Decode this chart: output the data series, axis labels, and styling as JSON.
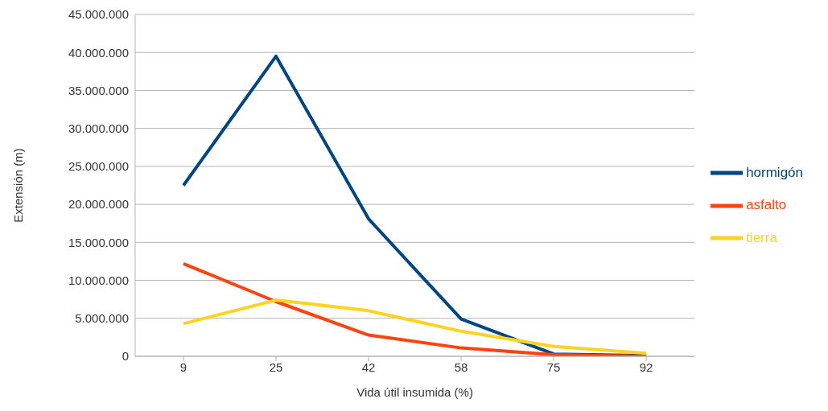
{
  "chart_data": {
    "type": "line",
    "xlabel": "Vida útil insumida (%)",
    "ylabel": "Extensión (m)",
    "categories": [
      "9",
      "25",
      "42",
      "58",
      "75",
      "92"
    ],
    "series": [
      {
        "name": "hormigón",
        "color": "#004586",
        "values": [
          22500000,
          39500000,
          18100000,
          4900000,
          300000,
          100000
        ]
      },
      {
        "name": "asfalto",
        "color": "#ff420e",
        "values": [
          12200000,
          7200000,
          2800000,
          1100000,
          200000,
          0
        ]
      },
      {
        "name": "tierra",
        "color": "#ffd320",
        "values": [
          4300000,
          7400000,
          6000000,
          3300000,
          1300000,
          400000
        ]
      }
    ],
    "ylim": [
      0,
      45000000
    ],
    "yticks": [
      {
        "value": 0,
        "label": "0"
      },
      {
        "value": 5000000,
        "label": "5.000.000"
      },
      {
        "value": 10000000,
        "label": "10.000.000"
      },
      {
        "value": 15000000,
        "label": "15.000.000"
      },
      {
        "value": 20000000,
        "label": "20.000.000"
      },
      {
        "value": 25000000,
        "label": "25.000.000"
      },
      {
        "value": 30000000,
        "label": "30.000.000"
      },
      {
        "value": 35000000,
        "label": "35.000.000"
      },
      {
        "value": 40000000,
        "label": "40.000.000"
      },
      {
        "value": 45000000,
        "label": "45.000.000"
      }
    ],
    "grid": "y",
    "legend": "right",
    "marker": "none",
    "line_style": "solid"
  }
}
